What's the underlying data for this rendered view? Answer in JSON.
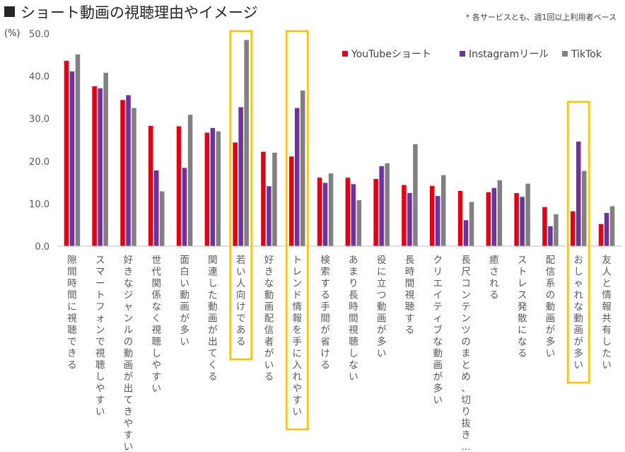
{
  "title": "ショート動画の視聴理由やイメージ",
  "note": "* 各サービスとも、週1回以上利用者ベース",
  "chart_data": {
    "type": "bar",
    "unit_label": "(%)",
    "ylim": [
      0,
      50
    ],
    "yticks": [
      "0.0",
      "10.0",
      "20.0",
      "30.0",
      "40.0",
      "50.0"
    ],
    "grid": false,
    "legend_position": "top-right",
    "categories": [
      "隙間時間に視聴できる",
      "スマートフォンで視聴しやすい",
      "好きなジャンルの動画が出てきやすい",
      "世代関係なく視聴しやすい",
      "面白い動画が多い",
      "関連した動画が出てくる",
      "若い人向けである",
      "好きな動画配信者がいる",
      "トレンド情報を手に入れやすい",
      "検索する手間が省ける",
      "あまり長時間視聴しない",
      "役に立つ動画が多い",
      "長時間視聴する",
      "クリエイティブな動画が多い",
      "長尺コンテンツのまとめ、切り抜き…",
      "癒される",
      "ストレス発散になる",
      "配信系の動画が多い",
      "おしゃれな動画が多い",
      "友人と情報共有したい"
    ],
    "series": [
      {
        "name": "YouTubeショート",
        "color": "#e60012",
        "values": [
          43.6,
          37.6,
          34.4,
          28.3,
          28.2,
          26.7,
          24.4,
          22.2,
          21.1,
          16.1,
          16.1,
          15.8,
          14.4,
          14.2,
          13.0,
          12.7,
          12.5,
          9.2,
          8.2,
          5.2
        ]
      },
      {
        "name": "Instagramリール",
        "color": "#7030a0",
        "values": [
          41.1,
          37.1,
          35.5,
          17.8,
          18.4,
          27.8,
          32.7,
          14.1,
          32.5,
          14.9,
          14.6,
          18.8,
          12.5,
          11.8,
          6.1,
          13.7,
          11.6,
          4.7,
          24.6,
          7.8
        ]
      },
      {
        "name": "TikTok",
        "color": "#808080",
        "values": [
          45.1,
          40.8,
          32.5,
          12.9,
          30.9,
          27.0,
          48.5,
          22.0,
          36.6,
          17.1,
          10.8,
          19.5,
          24.0,
          16.7,
          10.4,
          15.5,
          14.7,
          7.5,
          17.7,
          9.4
        ]
      }
    ],
    "highlighted_categories": [
      "若い人向けである",
      "トレンド情報を手に入れやすい",
      "おしゃれな動画が多い"
    ],
    "highlight_color": "#ffc000"
  }
}
